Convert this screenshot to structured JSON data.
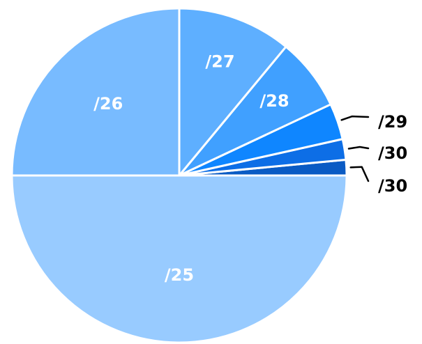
{
  "chart_data": {
    "type": "pie",
    "start_angle_deg": 0,
    "direction": "counterclockwise",
    "slices": [
      {
        "label": "/30",
        "value": 1.5,
        "color": "#0a5bc4",
        "label_position": "outside"
      },
      {
        "label": "/30",
        "value": 2.0,
        "color": "#0d6ee6",
        "label_position": "outside"
      },
      {
        "label": "/29",
        "value": 3.5,
        "color": "#0f86ff",
        "label_position": "outside"
      },
      {
        "label": "/28",
        "value": 7.0,
        "color": "#40a0ff",
        "label_position": "inside"
      },
      {
        "label": "/27",
        "value": 11.0,
        "color": "#5eafff",
        "label_position": "inside"
      },
      {
        "label": "/26",
        "value": 25.0,
        "color": "#78bbff",
        "label_position": "inside"
      },
      {
        "label": "/25",
        "value": 50.0,
        "color": "#98cbff",
        "label_position": "inside"
      }
    ]
  }
}
